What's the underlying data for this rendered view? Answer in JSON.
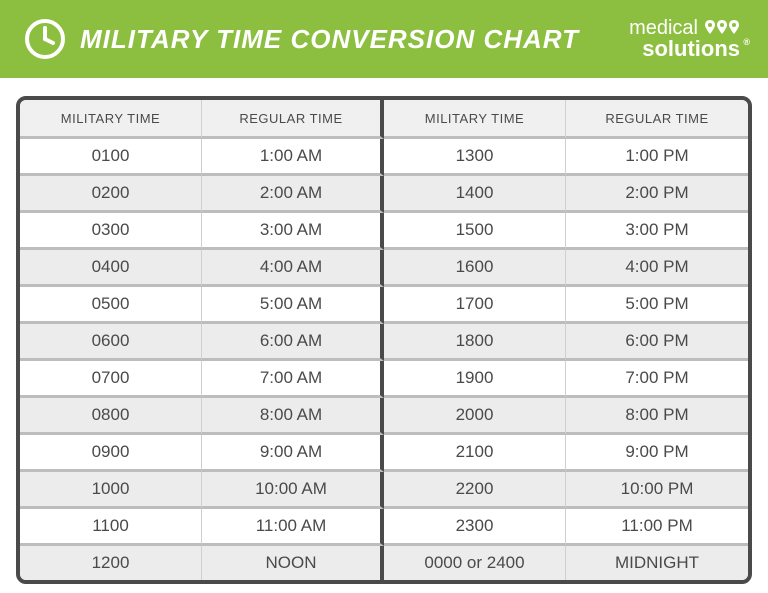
{
  "header": {
    "title": "MILITARY TIME CONVERSION CHART",
    "brand_line1": "medical",
    "brand_line2": "solutions",
    "accent_color": "#8cbf3f",
    "text_color": "#ffffff"
  },
  "table": {
    "border_color": "#4a4a4a",
    "row_divider_color": "#bdbdbd",
    "row_colors": [
      "#ffffff",
      "#ececec"
    ],
    "header_bg": "#f0f0f0",
    "text_color": "#4a4a4a",
    "header_fontsize": 13,
    "cell_fontsize": 17,
    "columns": [
      "MILITARY TIME",
      "REGULAR TIME",
      "MILITARY TIME",
      "REGULAR TIME"
    ],
    "rows": [
      [
        "0100",
        "1:00 AM",
        "1300",
        "1:00 PM"
      ],
      [
        "0200",
        "2:00 AM",
        "1400",
        "2:00 PM"
      ],
      [
        "0300",
        "3:00 AM",
        "1500",
        "3:00 PM"
      ],
      [
        "0400",
        "4:00 AM",
        "1600",
        "4:00 PM"
      ],
      [
        "0500",
        "5:00 AM",
        "1700",
        "5:00 PM"
      ],
      [
        "0600",
        "6:00 AM",
        "1800",
        "6:00 PM"
      ],
      [
        "0700",
        "7:00 AM",
        "1900",
        "7:00 PM"
      ],
      [
        "0800",
        "8:00 AM",
        "2000",
        "8:00 PM"
      ],
      [
        "0900",
        "9:00 AM",
        "2100",
        "9:00 PM"
      ],
      [
        "1000",
        "10:00 AM",
        "2200",
        "10:00 PM"
      ],
      [
        "1100",
        "11:00 AM",
        "2300",
        "11:00 PM"
      ],
      [
        "1200",
        "NOON",
        "0000 or 2400",
        "MIDNIGHT"
      ]
    ]
  }
}
